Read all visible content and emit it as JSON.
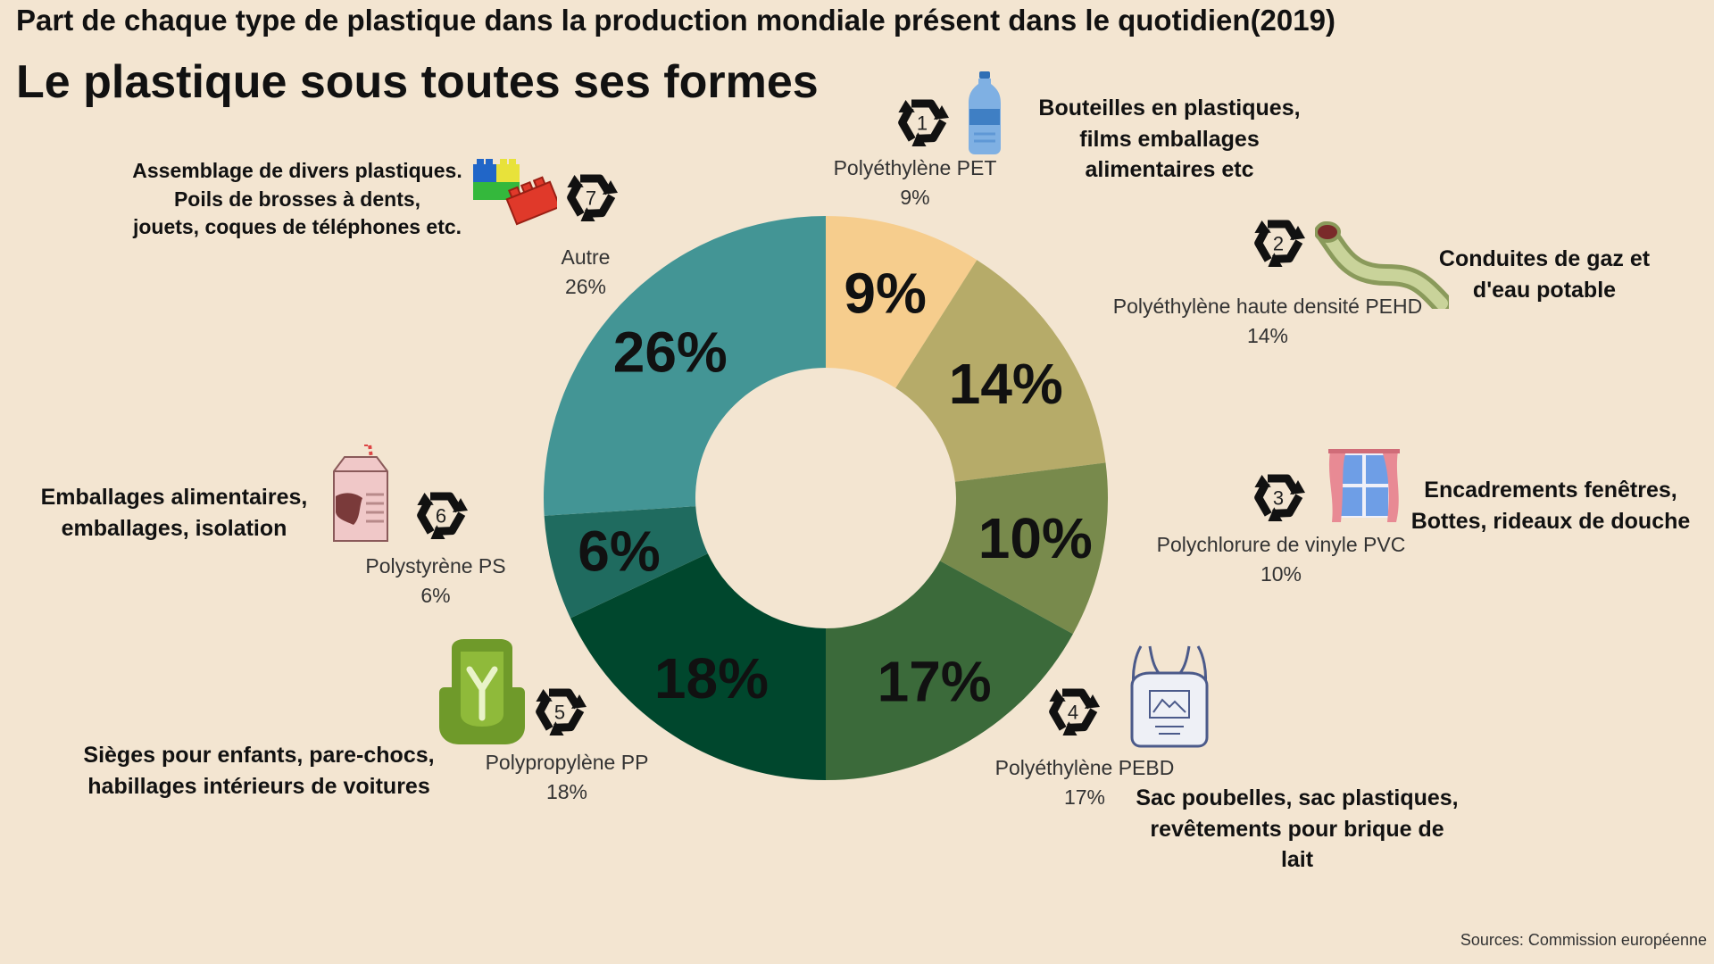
{
  "header": {
    "subtitle": "Part de chaque type de plastique dans la production mondiale présent dans le quotidien(2019)",
    "title": "Le plastique sous toutes ses formes"
  },
  "footer": {
    "source": "Sources: Commission européenne"
  },
  "chart_data": {
    "type": "pie",
    "donut": true,
    "values": [
      9,
      14,
      10,
      17,
      18,
      6,
      26
    ],
    "data_labels": [
      "9%",
      "14%",
      "10%",
      "17%",
      "18%",
      "6%",
      "26%"
    ],
    "colors": [
      "#f6cd8d",
      "#b6ab69",
      "#788a4c",
      "#3b6a3a",
      "#00472d",
      "#1f6b5f",
      "#439595"
    ],
    "legend": [
      {
        "recycle_code": "1",
        "name": "Polyéthylène PET",
        "value": "9%",
        "uses": [
          "Bouteilles en plastiques,",
          "films emballages",
          "alimentaires etc"
        ],
        "icon": "water-bottle-icon"
      },
      {
        "recycle_code": "2",
        "name": "Polyéthylène haute densité PEHD",
        "value": "14%",
        "uses": [
          "Conduites de gaz et",
          "d'eau potable"
        ],
        "icon": "pipe-icon"
      },
      {
        "recycle_code": "3",
        "name": "Polychlorure de vinyle PVC",
        "value": "10%",
        "uses": [
          "Encadrements fenêtres,",
          "Bottes, rideaux de douche"
        ],
        "icon": "window-curtain-icon"
      },
      {
        "recycle_code": "4",
        "name": "Polyéthylène PEBD",
        "value": "17%",
        "uses": [
          "Sac poubelles, sac plastiques,",
          "revêtements pour brique de",
          "lait"
        ],
        "icon": "shopping-bag-icon"
      },
      {
        "recycle_code": "5",
        "name": "Polypropylène PP",
        "value": "18%",
        "uses": [
          "Sièges pour enfants, pare-chocs,",
          "habillages intérieurs de voitures"
        ],
        "icon": "child-seat-icon"
      },
      {
        "recycle_code": "6",
        "name": "Polystyrène PS",
        "value": "6%",
        "uses": [
          "Emballages alimentaires,",
          "emballages, isolation"
        ],
        "icon": "milk-carton-icon"
      },
      {
        "recycle_code": "7",
        "name": "Autre",
        "value": "26%",
        "uses": [
          "Assemblage de divers plastiques.",
          "Poils de brosses à dents,",
          "jouets, coques de téléphones etc."
        ],
        "icon": "toy-bricks-icon"
      }
    ]
  }
}
